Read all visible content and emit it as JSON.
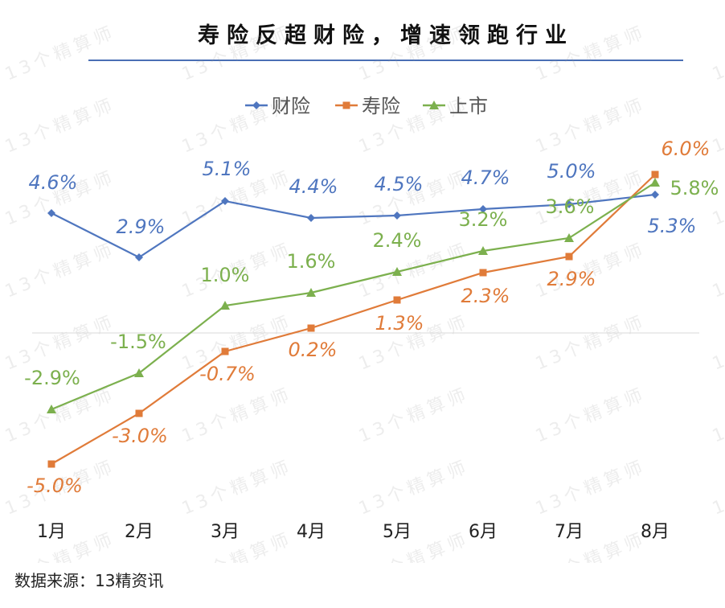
{
  "chart_data": {
    "type": "line",
    "title": "寿险反超财险，增速领跑行业",
    "categories": [
      "1月",
      "2月",
      "3月",
      "4月",
      "5月",
      "6月",
      "7月",
      "8月"
    ],
    "series": [
      {
        "name": "财险",
        "values": [
          4.6,
          2.9,
          5.1,
          4.4,
          4.5,
          4.7,
          5.0,
          5.3
        ],
        "color": "#4f76bf",
        "marker": "diamond",
        "labels": [
          "4.6%",
          "2.9%",
          "5.1%",
          "4.4%",
          "4.5%",
          "4.7%",
          "5.0%",
          "5.3%"
        ]
      },
      {
        "name": "寿险",
        "values": [
          -5.0,
          -3.0,
          -0.7,
          0.2,
          1.3,
          2.3,
          2.9,
          6.0
        ],
        "color": "#e07b39",
        "marker": "square",
        "labels": [
          "-5.0%",
          "-3.0%",
          "-0.7%",
          "0.2%",
          "1.3%",
          "2.3%",
          "2.9%",
          "6.0%"
        ]
      },
      {
        "name": "上市",
        "values": [
          -2.9,
          -1.5,
          1.0,
          1.6,
          2.4,
          3.2,
          3.6,
          5.8
        ],
        "color": "#7cb04e",
        "marker": "triangle",
        "labels": [
          "-2.9%",
          "-1.5%",
          "1.0%",
          "1.6%",
          "2.4%",
          "3.2%",
          "3.6%",
          "5.8%"
        ]
      }
    ],
    "legend_position": "top",
    "grid": false
  },
  "source": "数据来源：13精资讯",
  "watermark": "13个精算师"
}
